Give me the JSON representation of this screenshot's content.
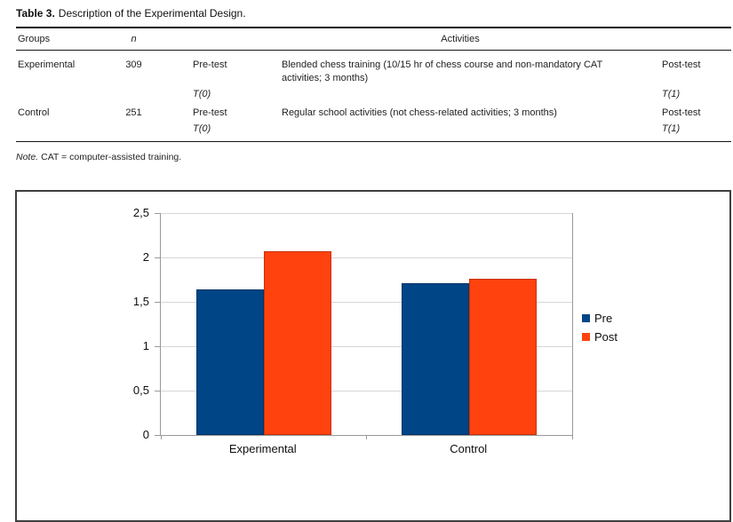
{
  "table": {
    "title_label": "Table 3.",
    "title_text": "Description of the Experimental Design.",
    "headers": {
      "groups": "Groups",
      "n": "n",
      "activities": "Activities"
    },
    "rows": [
      {
        "group": "Experimental",
        "n": "309",
        "pre_label": "Pre-test",
        "pre_time": "T(0)",
        "activities": "Blended chess training (10/15 hr of chess course and non-mandatory CAT activities; 3 months)",
        "post_label": "Post-test",
        "post_time": "T(1)"
      },
      {
        "group": "Control",
        "n": "251",
        "pre_label": "Pre-test",
        "pre_time": "T(0)",
        "activities": "Regular school activities (not chess-related activities; 3 months)",
        "post_label": "Post-test",
        "post_time": "T(1)"
      }
    ],
    "note_label": "Note.",
    "note_text": "CAT = computer-assisted training."
  },
  "chart_data": {
    "type": "bar",
    "categories": [
      "Experimental",
      "Control"
    ],
    "series": [
      {
        "name": "Pre",
        "color": "#004586",
        "values": [
          1.64,
          1.71
        ]
      },
      {
        "name": "Post",
        "color": "#FF420E",
        "values": [
          2.07,
          1.76
        ]
      }
    ],
    "ylim": [
      0,
      2.5
    ],
    "yticks": [
      0,
      0.5,
      1,
      1.5,
      2,
      2.5
    ],
    "ytick_labels": [
      "0",
      "0,5",
      "1",
      "1,5",
      "2",
      "2,5"
    ],
    "grid": true,
    "legend_position": "right",
    "axis_color": "#9a9a9a",
    "grid_color": "#d6d6d6",
    "frame_color": "#3f3f3f"
  }
}
